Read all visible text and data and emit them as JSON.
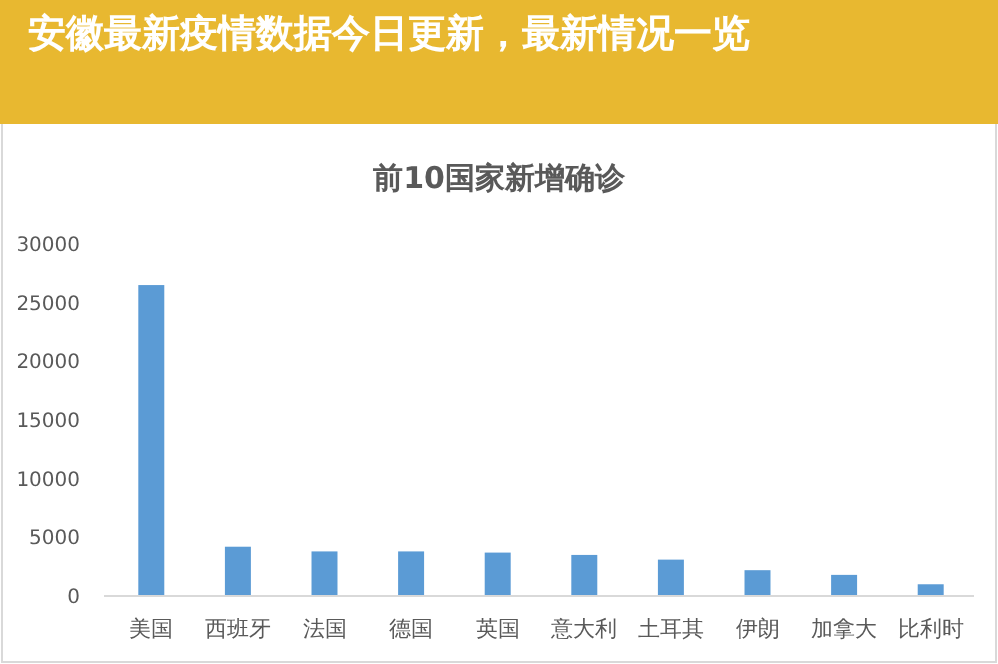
{
  "chart_data": {
    "type": "bar",
    "title": "前10国家新增确诊",
    "categories": [
      "美国",
      "西班牙",
      "法国",
      "德国",
      "英国",
      "意大利",
      "土耳其",
      "伊朗",
      "加拿大",
      "比利时"
    ],
    "values": [
      26500,
      4200,
      3800,
      3800,
      3700,
      3500,
      3100,
      2200,
      1800,
      1000
    ],
    "color": "#5b9bd5",
    "ylim": [
      0,
      30000
    ],
    "yticks": [
      0,
      5000,
      10000,
      15000,
      20000,
      25000,
      30000
    ],
    "grid": false,
    "annotations": [
      "安徽最新疫情数据今日更新，最新情况一览"
    ]
  }
}
